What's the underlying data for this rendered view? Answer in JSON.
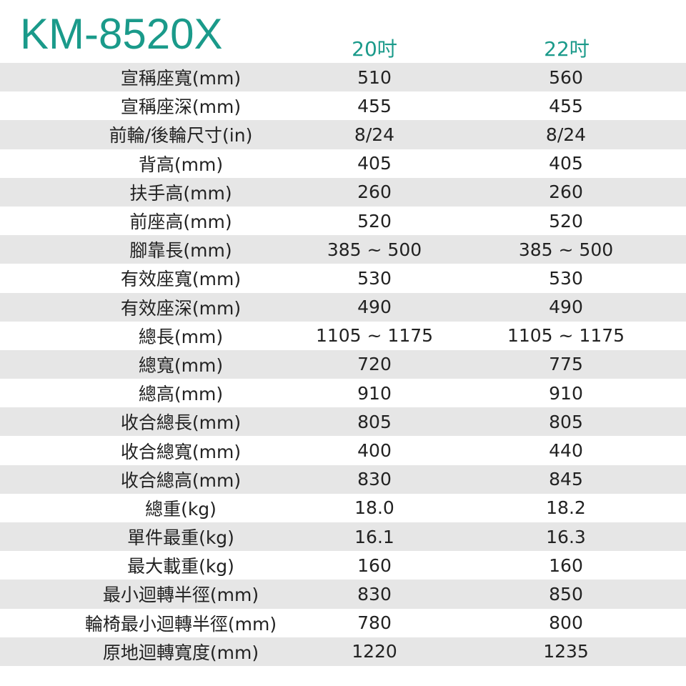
{
  "title": "KM-8520X",
  "columns": [
    "20吋",
    "22吋"
  ],
  "accent_color": "#1a9a8a",
  "stripe_color": "#e6e6e6",
  "rows": [
    {
      "label": "宣稱座寬(mm)",
      "v1": "510",
      "v2": "560"
    },
    {
      "label": "宣稱座深(mm)",
      "v1": "455",
      "v2": "455"
    },
    {
      "label": "前輪/後輪尺寸(in)",
      "v1": "8/24",
      "v2": "8/24"
    },
    {
      "label": "背高(mm)",
      "v1": "405",
      "v2": "405"
    },
    {
      "label": "扶手高(mm)",
      "v1": "260",
      "v2": "260"
    },
    {
      "label": "前座高(mm)",
      "v1": "520",
      "v2": "520"
    },
    {
      "label": "腳靠長(mm)",
      "v1": "385 ~ 500",
      "v2": "385 ~ 500"
    },
    {
      "label": "有效座寬(mm)",
      "v1": "530",
      "v2": "530"
    },
    {
      "label": "有效座深(mm)",
      "v1": "490",
      "v2": "490"
    },
    {
      "label": "總長(mm)",
      "v1": "1105 ~ 1175",
      "v2": "1105 ~ 1175"
    },
    {
      "label": "總寬(mm)",
      "v1": "720",
      "v2": "775"
    },
    {
      "label": "總高(mm)",
      "v1": "910",
      "v2": "910"
    },
    {
      "label": "收合總長(mm)",
      "v1": "805",
      "v2": "805"
    },
    {
      "label": "收合總寬(mm)",
      "v1": "400",
      "v2": "440"
    },
    {
      "label": "收合總高(mm)",
      "v1": "830",
      "v2": "845"
    },
    {
      "label": "總重(kg)",
      "v1": "18.0",
      "v2": "18.2"
    },
    {
      "label": "單件最重(kg)",
      "v1": "16.1",
      "v2": "16.3"
    },
    {
      "label": "最大載重(kg)",
      "v1": "160",
      "v2": "160"
    },
    {
      "label": "最小迴轉半徑(mm)",
      "v1": "830",
      "v2": "850"
    },
    {
      "label": "輪椅最小迴轉半徑(mm)",
      "v1": "780",
      "v2": "800"
    },
    {
      "label": "原地迴轉寬度(mm)",
      "v1": "1220",
      "v2": "1235"
    }
  ]
}
